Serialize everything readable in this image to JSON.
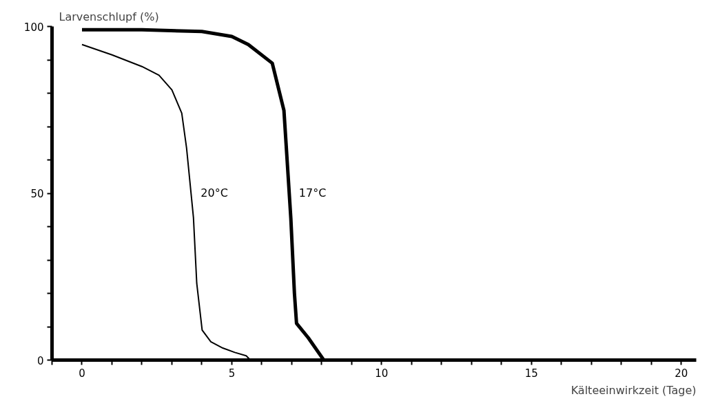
{
  "chart_data": {
    "type": "line",
    "xlabel": "Kälteeinwirkzeit (Tage)",
    "ylabel": "Larvenschlupf (%)",
    "xlim": [
      -1,
      20.5
    ],
    "ylim": [
      0,
      100
    ],
    "xticks": [
      {
        "value": -1,
        "label": null
      },
      0,
      {
        "value": 1,
        "label": null
      },
      {
        "value": 2,
        "label": null
      },
      {
        "value": 3,
        "label": null
      },
      {
        "value": 4,
        "label": null
      },
      5,
      {
        "value": 6,
        "label": null
      },
      {
        "value": 7,
        "label": null
      },
      {
        "value": 8,
        "label": null
      },
      {
        "value": 9,
        "label": null
      },
      10,
      {
        "value": 11,
        "label": null
      },
      {
        "value": 12,
        "label": null
      },
      {
        "value": 13,
        "label": null
      },
      {
        "value": 14,
        "label": null
      },
      15,
      {
        "value": 16,
        "label": null
      },
      {
        "value": 17,
        "label": null
      },
      {
        "value": 18,
        "label": null
      },
      {
        "value": 19,
        "label": null
      },
      20
    ],
    "yticks": [
      0,
      {
        "value": 10,
        "label": null
      },
      {
        "value": 20,
        "label": null
      },
      {
        "value": 30,
        "label": null
      },
      {
        "value": 40,
        "label": null
      },
      50,
      {
        "value": 60,
        "label": null
      },
      {
        "value": 70,
        "label": null
      },
      {
        "value": 80,
        "label": null
      },
      {
        "value": 90,
        "label": null
      },
      100
    ],
    "grid": false,
    "legend": false,
    "marker": "none",
    "line_style": "solid",
    "series": [
      {
        "name": "20°C",
        "color": "#000000",
        "x": [
          0,
          1,
          2,
          2.57,
          3,
          3.33,
          3.49,
          3.72,
          3.83,
          4.01,
          4.3,
          4.7,
          5.1,
          5.48,
          5.62
        ],
        "values": [
          94.6,
          91.5,
          88,
          85.4,
          81,
          74,
          63.6,
          42.7,
          23,
          9,
          5.5,
          3.6,
          2.3,
          1.3,
          0
        ]
      },
      {
        "name": "17°C",
        "color": "#000000",
        "x": [
          0,
          2,
          4,
          5,
          5.55,
          6.35,
          6.74,
          6.81,
          6.97,
          7.09,
          7.16,
          7.55,
          8.07
        ],
        "values": [
          99,
          99,
          98.5,
          97,
          94.6,
          89,
          74.8,
          65,
          42.5,
          20,
          11,
          6.7,
          0
        ]
      }
    ]
  }
}
